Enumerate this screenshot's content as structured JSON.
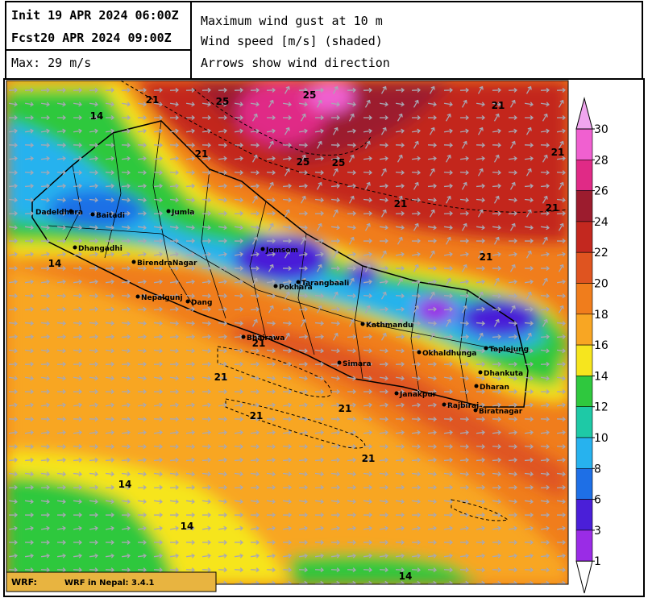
{
  "header": {
    "init": "Init 19 APR 2024 06:00Z",
    "fcst": "Fcst20 APR 2024 09:00Z",
    "max": "Max: 29 m/s",
    "description": [
      "Maximum wind gust at 10 m",
      "Wind speed [m/s] (shaded)",
      "Arrows show wind direction"
    ]
  },
  "colorbar": {
    "ticks": [
      30,
      28,
      26,
      24,
      22,
      20,
      18,
      16,
      14,
      12,
      10,
      8,
      6,
      3,
      1
    ],
    "colors": [
      "#f060d0",
      "#e02a86",
      "#9c1c2e",
      "#c3281f",
      "#df5420",
      "#f07d1c",
      "#f8a623",
      "#f6e51e",
      "#2fc83e",
      "#1ec9a6",
      "#27b2ee",
      "#1e6fe6",
      "#4a1fd8",
      "#9a2ce6"
    ],
    "over_color": "#f0a6ee",
    "under_color": "#ffffff"
  },
  "map": {
    "cities": [
      "Dadeldhura",
      "Baitadi",
      "Jumla",
      "Dhangadhi",
      "BirendraNagar",
      "Nepalgunj",
      "Dang",
      "Jomsom",
      "Pokhara",
      "Tarangbaali",
      "Kathmandu",
      "Bhairawa",
      "Simara",
      "Okhaldhunga",
      "Taplejung",
      "Dhankuta",
      "Dharan",
      "Janakpur",
      "Rajbiraj",
      "Biratnagar"
    ],
    "contour_labels": [
      "21",
      "25",
      "25",
      "21",
      "21",
      "21",
      "25",
      "25",
      "21",
      "21",
      "21",
      "21",
      "21",
      "21",
      "21",
      "21",
      "14",
      "14",
      "14",
      "14",
      "14"
    ]
  },
  "footer": {
    "model": "WRF:",
    "version": "WRF in Nepal: 3.4.1"
  }
}
